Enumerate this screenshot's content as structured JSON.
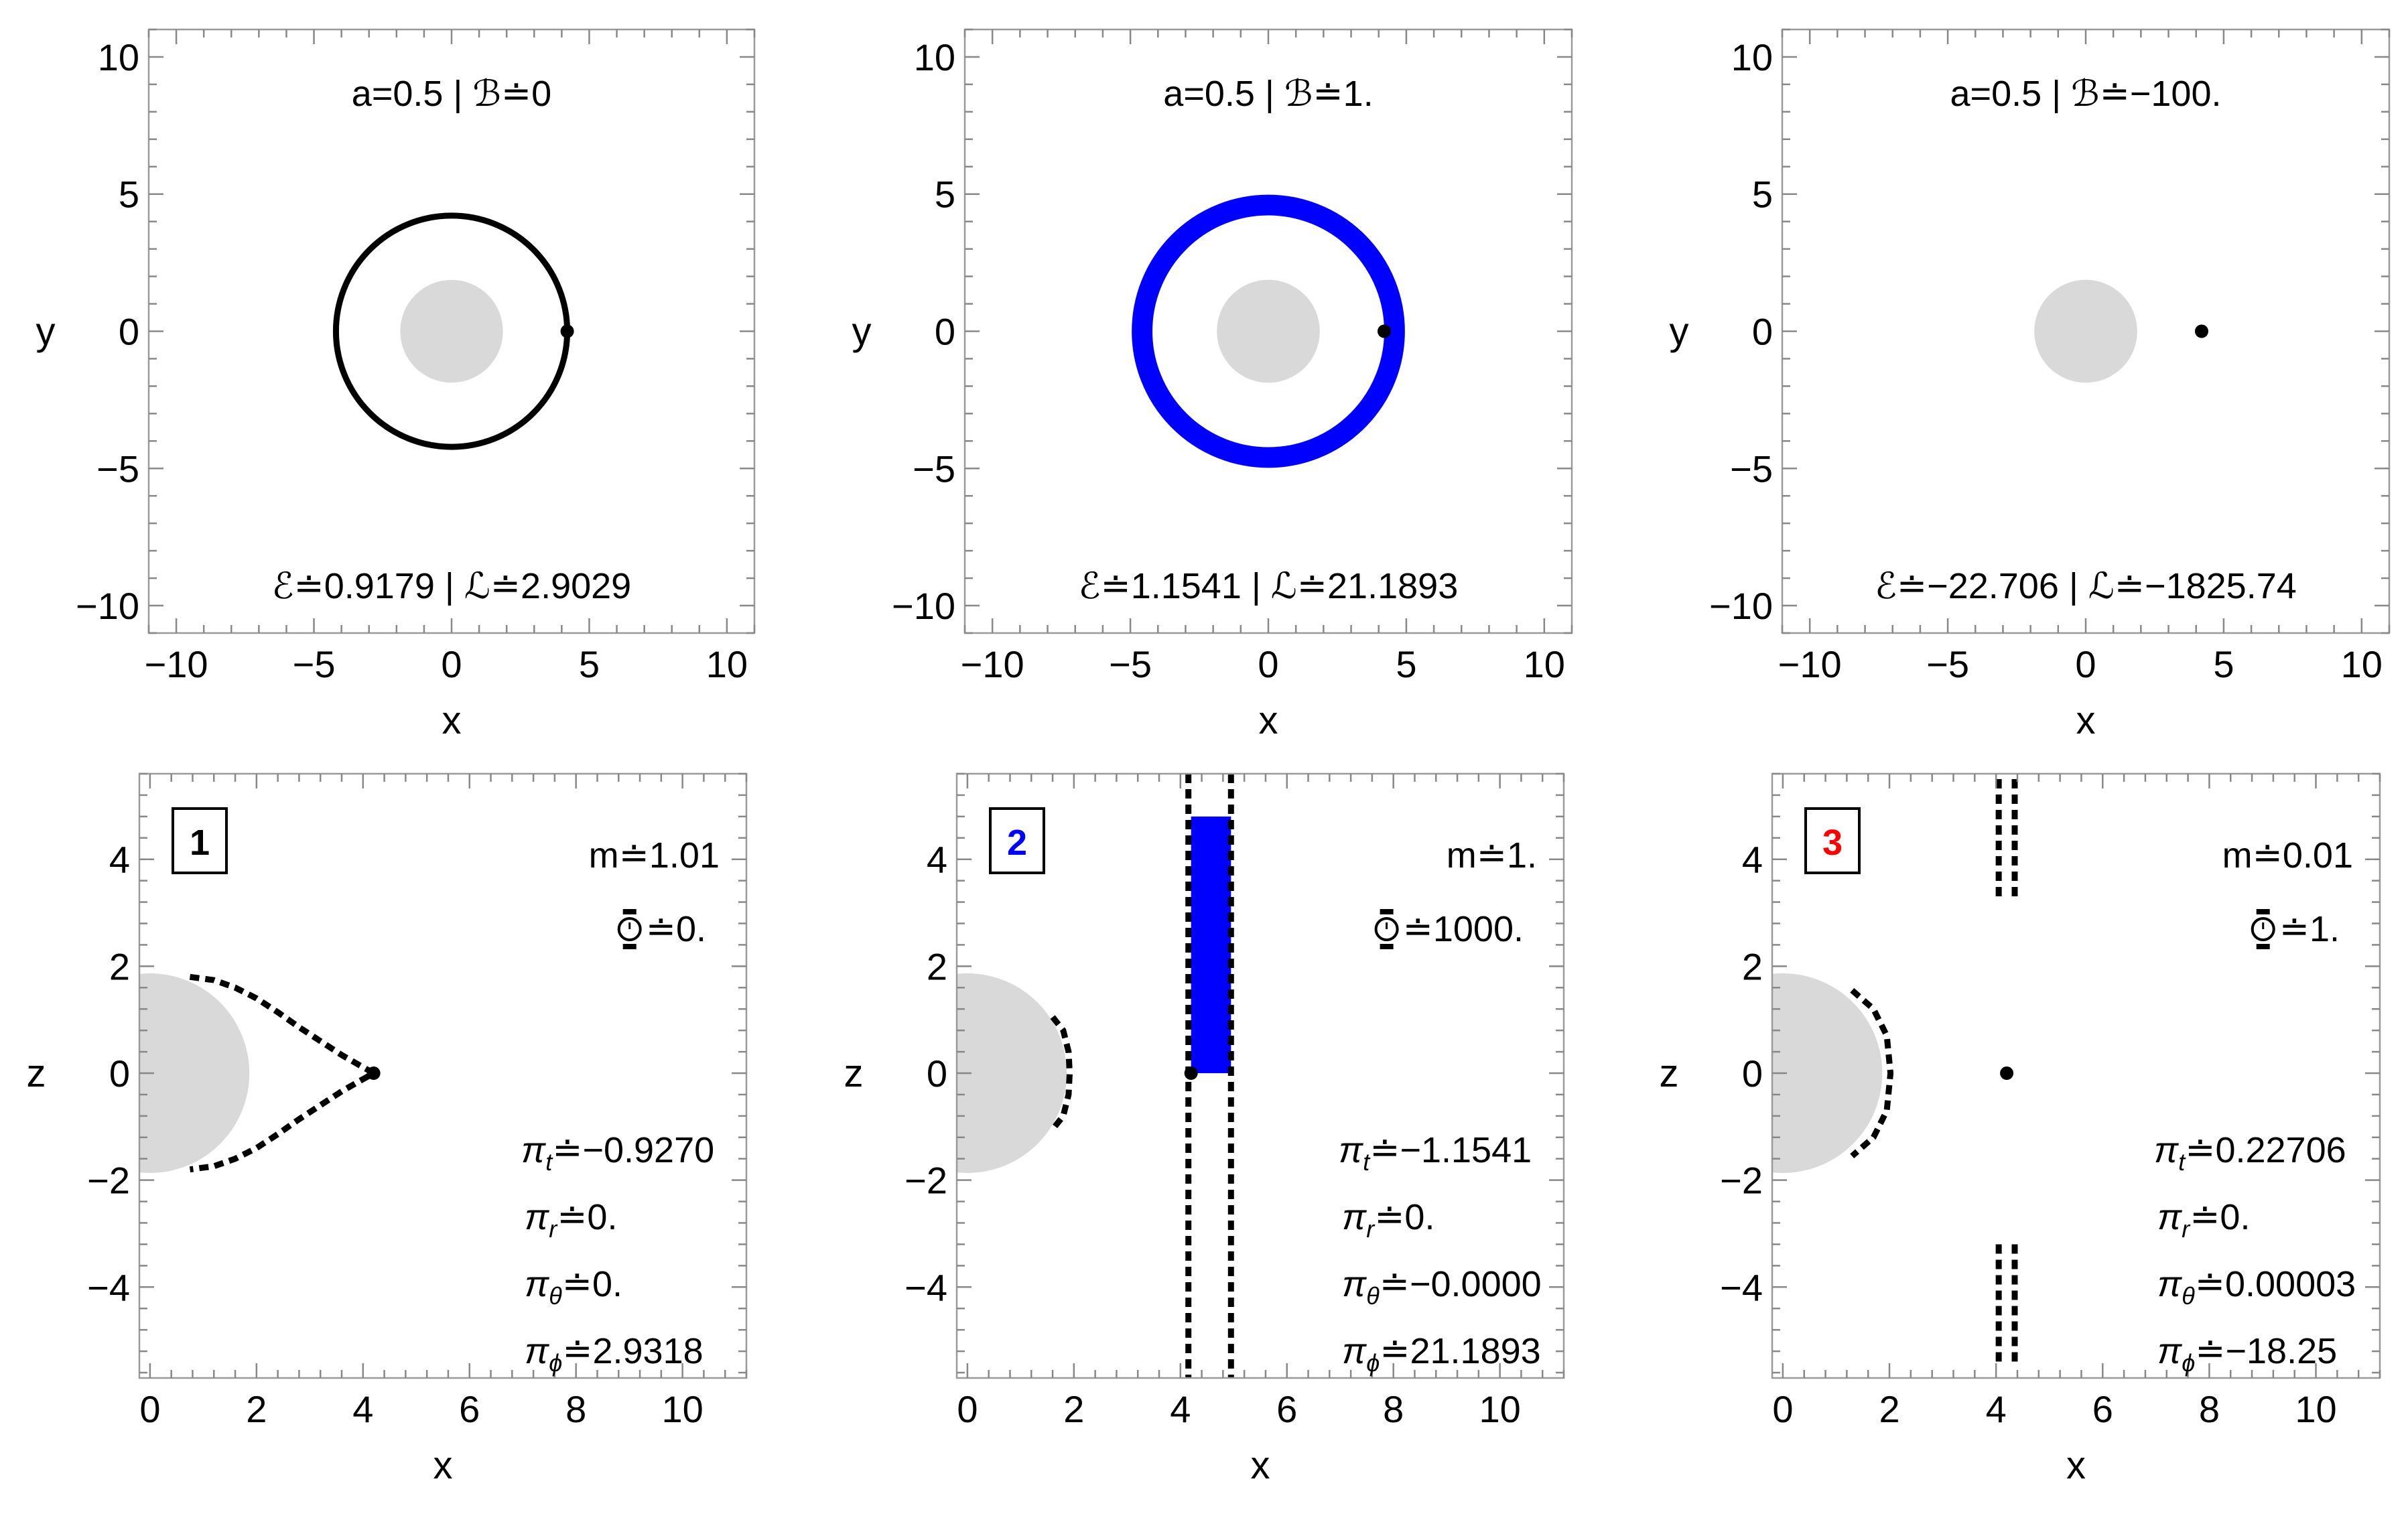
{
  "chart_data": [
    {
      "type": "scatter",
      "panel": "top-left",
      "xlabel": "x",
      "ylabel": "y",
      "xlim": [
        -11,
        11
      ],
      "ylim": [
        -11,
        11
      ],
      "xticks": [
        -10,
        -5,
        0,
        5,
        10
      ],
      "yticks": [
        -10,
        -5,
        0,
        5,
        10
      ],
      "title": "a=0.5 | ℬ≐0",
      "subtitle": "ℰ≐0.9179 | ℒ≐2.9029",
      "horizon_radius": 1.866,
      "orbit": {
        "kind": "circle",
        "radius": 4.2,
        "width": 0.15,
        "color": "#000000"
      },
      "start_point": [
        4.2,
        0
      ]
    },
    {
      "type": "scatter",
      "panel": "top-middle",
      "xlabel": "x",
      "ylabel": "y",
      "xlim": [
        -11,
        11
      ],
      "ylim": [
        -11,
        11
      ],
      "xticks": [
        -10,
        -5,
        0,
        5,
        10
      ],
      "yticks": [
        -10,
        -5,
        0,
        5,
        10
      ],
      "title": "a=0.5 | ℬ≐1.",
      "subtitle": "ℰ≐1.1541 | ℒ≐21.1893",
      "horizon_radius": 1.866,
      "orbit": {
        "kind": "annulus",
        "r_inner": 4.2,
        "r_outer": 4.95,
        "color": "#0000ff"
      },
      "start_point": [
        4.2,
        0
      ]
    },
    {
      "type": "scatter",
      "panel": "top-right",
      "xlabel": "x",
      "ylabel": "y",
      "xlim": [
        -11,
        11
      ],
      "ylim": [
        -11,
        11
      ],
      "xticks": [
        -10,
        -5,
        0,
        5,
        10
      ],
      "yticks": [
        -10,
        -5,
        0,
        5,
        10
      ],
      "title": "a=0.5 | ℬ≐−100.",
      "subtitle": "ℰ≐−22.706 | ℒ≐−1825.74",
      "horizon_radius": 1.866,
      "start_point": [
        4.2,
        0
      ]
    },
    {
      "type": "scatter",
      "panel": "bottom-left",
      "xlabel": "x",
      "ylabel": "z",
      "xlim": [
        -0.2,
        11.2
      ],
      "ylim": [
        -5.7,
        5.6
      ],
      "xticks": [
        0,
        2,
        4,
        6,
        8,
        10
      ],
      "yticks": [
        -4,
        -2,
        0,
        2,
        4
      ],
      "label": "1",
      "label_color": "#000000",
      "annotations": {
        "m": "m≐1.01",
        "clock": "≐0.",
        "pt": "π",
        "pt_sub": "t",
        "pt_val": "≐−0.9270",
        "pr": "π",
        "pr_sub": "r",
        "pr_val": "≐0.",
        "pth": "π",
        "pth_sub": "θ",
        "pth_val": "≐0.",
        "pph": "π",
        "pph_sub": "ϕ",
        "pph_val": "≐2.9318"
      },
      "horizon_radius": 1.866,
      "zvc": [
        [
          0.75,
          1.8
        ],
        [
          1.2,
          1.74
        ],
        [
          1.6,
          1.6
        ],
        [
          2.0,
          1.4
        ],
        [
          2.4,
          1.14
        ],
        [
          2.8,
          0.86
        ],
        [
          3.2,
          0.6
        ],
        [
          3.6,
          0.34
        ],
        [
          3.95,
          0.14
        ],
        [
          4.2,
          0
        ],
        [
          3.95,
          -0.14
        ],
        [
          3.6,
          -0.34
        ],
        [
          3.2,
          -0.6
        ],
        [
          2.8,
          -0.86
        ],
        [
          2.4,
          -1.14
        ],
        [
          2.0,
          -1.4
        ],
        [
          1.6,
          -1.6
        ],
        [
          1.2,
          -1.74
        ],
        [
          0.75,
          -1.8
        ]
      ],
      "start_point": [
        4.2,
        0
      ]
    },
    {
      "type": "scatter",
      "panel": "bottom-middle",
      "xlabel": "x",
      "ylabel": "z",
      "xlim": [
        -0.2,
        11.2
      ],
      "ylim": [
        -5.7,
        5.6
      ],
      "xticks": [
        0,
        2,
        4,
        6,
        8,
        10
      ],
      "yticks": [
        -4,
        -2,
        0,
        2,
        4
      ],
      "label": "2",
      "label_color": "#0000ff",
      "annotations": {
        "m": "m≐1.",
        "clock": "≐1000.",
        "pt": "π",
        "pt_sub": "t",
        "pt_val": "≐−1.1541",
        "pr": "π",
        "pr_sub": "r",
        "pr_val": "≐0.",
        "pth": "π",
        "pth_sub": "θ",
        "pth_val": "≐−0.0000",
        "pph": "π",
        "pph_sub": "ϕ",
        "pph_val": "≐21.1893"
      },
      "horizon_radius": 1.866,
      "zvc_left_cap": [
        [
          1.6,
          1.05
        ],
        [
          1.8,
          0.8
        ],
        [
          1.9,
          0.4
        ],
        [
          1.92,
          0
        ],
        [
          1.9,
          -0.4
        ],
        [
          1.8,
          -0.8
        ],
        [
          1.6,
          -1.05
        ]
      ],
      "zvc_lines_x": [
        4.15,
        4.95
      ],
      "orbit_band": {
        "x": [
          4.2,
          4.95
        ],
        "z": [
          0,
          4.8
        ],
        "color": "#0000ff"
      },
      "start_point": [
        4.2,
        0
      ]
    },
    {
      "type": "scatter",
      "panel": "bottom-right",
      "xlabel": "x",
      "ylabel": "z",
      "xlim": [
        -0.2,
        11.2
      ],
      "ylim": [
        -5.7,
        5.6
      ],
      "xticks": [
        0,
        2,
        4,
        6,
        8,
        10
      ],
      "yticks": [
        -4,
        -2,
        0,
        2,
        4
      ],
      "label": "3",
      "label_color": "#ff0000",
      "annotations": {
        "m": "m≐0.01",
        "clock": "≐1.",
        "pt": "π",
        "pt_sub": "t",
        "pt_val": "≐0.22706",
        "pr": "π",
        "pr_sub": "r",
        "pr_val": "≐0.",
        "pth": "π",
        "pth_sub": "θ",
        "pth_val": "≐0.00003",
        "pph": "π",
        "pph_sub": "ϕ",
        "pph_val": "≐−18.25"
      },
      "horizon_radius": 1.866,
      "zvc_left_cap": [
        [
          1.3,
          1.55
        ],
        [
          1.7,
          1.2
        ],
        [
          1.95,
          0.7
        ],
        [
          2.02,
          0
        ],
        [
          1.95,
          -0.7
        ],
        [
          1.7,
          -1.2
        ],
        [
          1.3,
          -1.55
        ]
      ],
      "zvc_strips": [
        {
          "x": [
            4.05,
            4.35
          ],
          "z": [
            3.2,
            5.5
          ]
        },
        {
          "x": [
            4.05,
            4.35
          ],
          "z": [
            -5.5,
            -3.2
          ]
        }
      ],
      "start_point": [
        4.2,
        0
      ]
    }
  ]
}
